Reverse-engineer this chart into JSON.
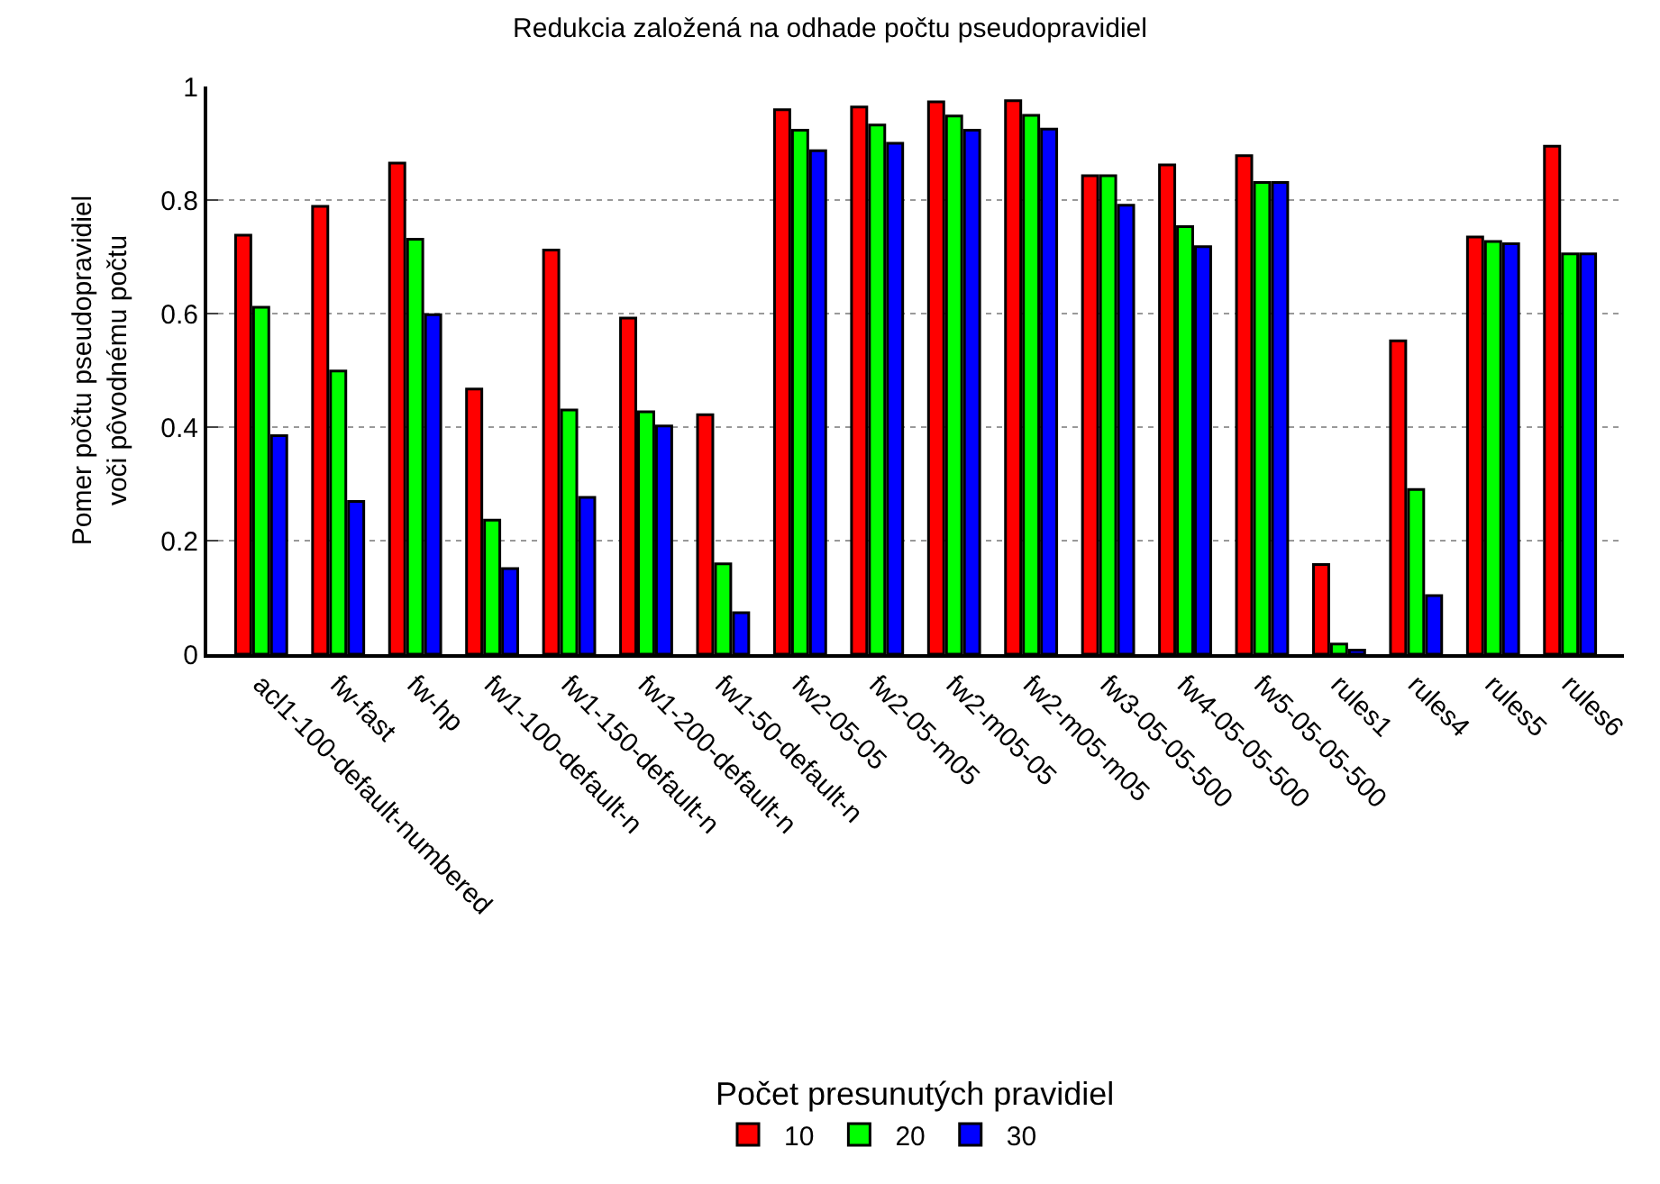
{
  "chart_data": {
    "type": "bar",
    "title": "Redukcia založená na odhade počtu pseudopravidiel",
    "ylabel": "Pomer počtu pseudopravidiel\nvoči pôvodnému počtu",
    "legend_title": "Počet presunutých pravidiel",
    "categories": [
      "acl1-100-default-numbered",
      "fw-fast",
      "fw-hp",
      "fw1-100-default-n",
      "fw1-150-default-n",
      "fw1-200-default-n",
      "fw1-50-default-n",
      "fw2-05-05",
      "fw2-05-m05",
      "fw2-m05-05",
      "fw2-m05-m05",
      "fw3-05-05-500",
      "fw4-05-05-500",
      "fw5-05-05-500",
      "rules1",
      "rules4",
      "rules5",
      "rules6"
    ],
    "series": [
      {
        "name": "10",
        "color": "#ff0000",
        "values": [
          0.738,
          0.789,
          0.865,
          0.467,
          0.712,
          0.592,
          0.422,
          0.959,
          0.964,
          0.973,
          0.975,
          0.843,
          0.862,
          0.878,
          0.158,
          0.552,
          0.735,
          0.895
        ]
      },
      {
        "name": "20",
        "color": "#00ff00",
        "values": [
          0.611,
          0.499,
          0.731,
          0.236,
          0.43,
          0.427,
          0.159,
          0.923,
          0.932,
          0.948,
          0.949,
          0.843,
          0.753,
          0.831,
          0.018,
          0.29,
          0.727,
          0.705
        ]
      },
      {
        "name": "30",
        "color": "#0000ff",
        "values": [
          0.385,
          0.269,
          0.598,
          0.151,
          0.276,
          0.402,
          0.073,
          0.887,
          0.9,
          0.923,
          0.925,
          0.791,
          0.718,
          0.831,
          0.007,
          0.103,
          0.723,
          0.705
        ]
      }
    ],
    "ylim": [
      0,
      1
    ],
    "yticks": [
      0,
      0.2,
      0.4,
      0.6,
      0.8,
      1
    ],
    "grid": "y",
    "legend": "bottom"
  }
}
